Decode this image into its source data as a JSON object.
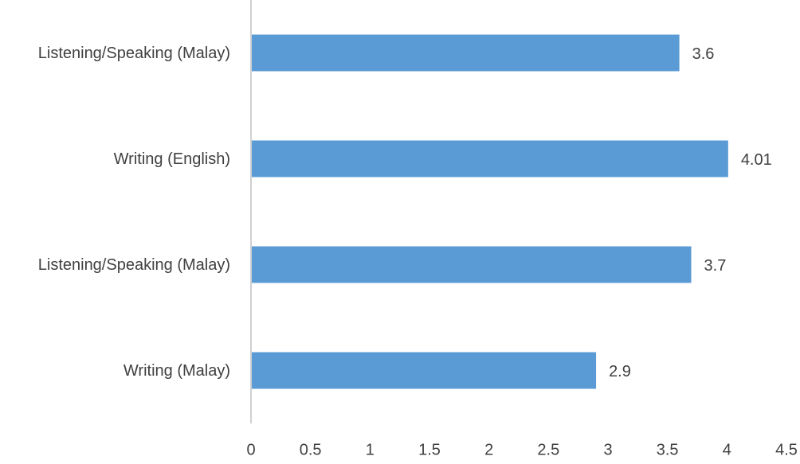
{
  "chart_data": {
    "type": "bar",
    "orientation": "horizontal",
    "categories": [
      "Listening/Speaking (Malay)",
      "Writing (English)",
      "Listening/Speaking (Malay)",
      "Writing (Malay)"
    ],
    "values": [
      3.6,
      4.01,
      3.7,
      2.9
    ],
    "color": "#5b9bd5",
    "xlim": [
      0,
      4.5
    ],
    "xticks": [
      0,
      0.5,
      1,
      1.5,
      2,
      2.5,
      3,
      3.5,
      4,
      4.5
    ],
    "data_labels": true
  }
}
